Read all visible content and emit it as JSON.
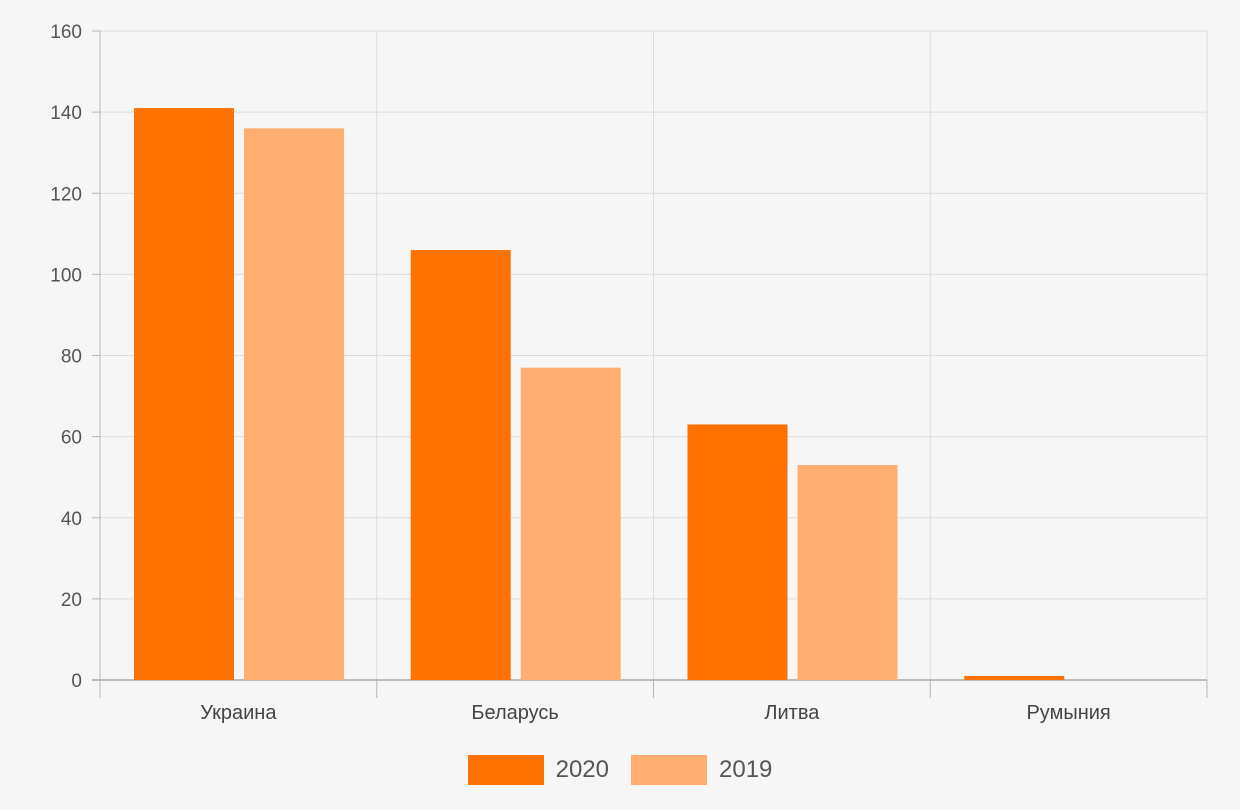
{
  "chart_data": {
    "type": "bar",
    "categories": [
      "Украина",
      "Беларусь",
      "Литва",
      "Румыния"
    ],
    "series": [
      {
        "name": "2020",
        "values": [
          141,
          106,
          63,
          1
        ],
        "color": "#ff7200"
      },
      {
        "name": "2019",
        "values": [
          136,
          77,
          53,
          0
        ],
        "color": "#ffad70"
      }
    ],
    "ylim": [
      0,
      160
    ],
    "yticks": [
      0,
      20,
      40,
      60,
      80,
      100,
      120,
      140,
      160
    ],
    "grid": true,
    "legend_position": "bottom-center",
    "title": "",
    "xlabel": "",
    "ylabel": ""
  }
}
